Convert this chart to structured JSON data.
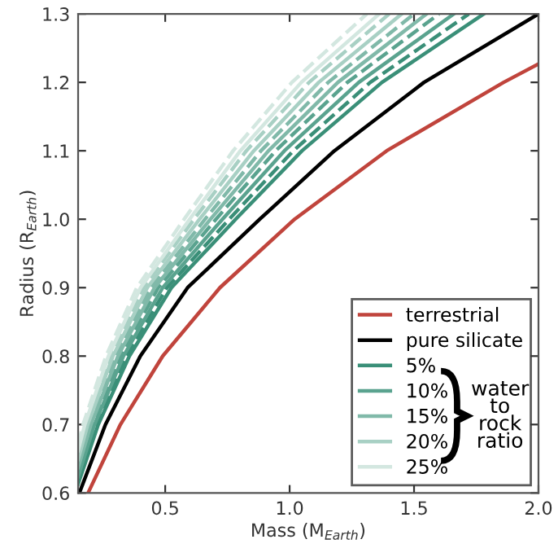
{
  "chart_data": {
    "type": "line",
    "xlabel": "Mass (M$_{Earth}$)",
    "ylabel": "Radius (R$_{Earth}$)",
    "xlim": [
      0.15,
      2.0
    ],
    "ylim": [
      0.6,
      1.3
    ],
    "xticks": [
      0.5,
      {
        "value": 1,
        "label": "1.0"
      },
      1.5,
      {
        "value": 2,
        "label": "2.0"
      }
    ],
    "yticks": [
      0.6,
      0.7,
      0.8,
      0.9,
      {
        "value": 1,
        "label": "1.0"
      },
      1.1,
      1.2,
      1.3
    ],
    "grid": false,
    "legend": "bottom right",
    "line_style": "solid",
    "annotations": [
      "water\nto\nrock\nratio"
    ],
    "series": [
      {
        "name": "terrestrial",
        "color": "#c0443c",
        "x": [
          0.19,
          0.32,
          0.49,
          0.72,
          1.02,
          1.39,
          1.86,
          2.0
        ],
        "values": [
          0.6,
          0.7,
          0.8,
          0.9,
          1.0,
          1.1,
          1.2,
          1.227
        ]
      },
      {
        "name": "pure silicate",
        "color": "#000000",
        "x": [
          0.155,
          0.26,
          0.4,
          0.59,
          0.88,
          1.18,
          1.54,
          2.0
        ],
        "values": [
          0.6,
          0.7,
          0.8,
          0.9,
          1.0,
          1.1,
          1.2,
          1.3
        ]
      },
      {
        "name": "5%",
        "color": "#3a8f78",
        "x": [
          0.15,
          0.231,
          0.356,
          0.525,
          0.783,
          1.05,
          1.371,
          1.78
        ],
        "values": [
          0.613,
          0.7,
          0.8,
          0.9,
          1.0,
          1.1,
          1.2,
          1.3
        ]
      },
      {
        "color": "#3a8f78",
        "line_style": "dashed",
        "x": [
          0.15,
          0.224,
          0.344,
          0.507,
          0.757,
          1.015,
          1.324,
          1.72
        ],
        "values": [
          0.618,
          0.7,
          0.8,
          0.9,
          1.0,
          1.1,
          1.2,
          1.3
        ]
      },
      {
        "name": "10%",
        "color": "#5aa38f",
        "x": [
          0.15,
          0.216,
          0.332,
          0.49,
          0.73,
          0.979,
          1.278,
          1.66
        ],
        "values": [
          0.624,
          0.7,
          0.8,
          0.9,
          1.0,
          1.1,
          1.2,
          1.3
        ]
      },
      {
        "color": "#5aa38f",
        "line_style": "dashed",
        "x": [
          0.15,
          0.208,
          0.32,
          0.472,
          0.704,
          0.944,
          1.232,
          1.6
        ],
        "values": [
          0.631,
          0.7,
          0.8,
          0.9,
          1.0,
          1.1,
          1.2,
          1.3
        ]
      },
      {
        "name": "15%",
        "color": "#80b9a9",
        "x": [
          0.15,
          0.2015,
          0.31,
          0.457,
          0.682,
          0.915,
          1.194,
          1.55
        ],
        "values": [
          0.637,
          0.7,
          0.8,
          0.9,
          1.0,
          1.1,
          1.2,
          1.3
        ]
      },
      {
        "color": "#80b9a9",
        "line_style": "dashed",
        "x": [
          0.15,
          0.195,
          0.3,
          0.443,
          0.66,
          0.885,
          1.155,
          1.5
        ],
        "values": [
          0.643,
          0.7,
          0.8,
          0.9,
          1.0,
          1.1,
          1.2,
          1.3
        ]
      },
      {
        "name": "20%",
        "color": "#a8d0c4",
        "x": [
          0.15,
          0.1885,
          0.29,
          0.428,
          0.638,
          0.856,
          1.117,
          1.45
        ],
        "values": [
          0.649,
          0.7,
          0.8,
          0.9,
          1.0,
          1.1,
          1.2,
          1.3
        ]
      },
      {
        "color": "#a8d0c4",
        "line_style": "dashed",
        "x": [
          0.15,
          0.182,
          0.28,
          0.413,
          0.616,
          0.826,
          1.078,
          1.4
        ],
        "values": [
          0.656,
          0.7,
          0.8,
          0.9,
          1.0,
          1.1,
          1.2,
          1.3
        ]
      },
      {
        "name": "25%",
        "color": "#d3e7e0",
        "x": [
          0.15,
          0.177,
          0.272,
          0.401,
          0.598,
          0.802,
          1.047,
          1.36
        ],
        "values": [
          0.662,
          0.7,
          0.8,
          0.9,
          1.0,
          1.1,
          1.2,
          1.3
        ]
      },
      {
        "color": "#d3e7e0",
        "line_style": "dashed",
        "x": [
          0.15,
          0.17,
          0.262,
          0.386,
          0.576,
          0.773,
          1.009,
          1.31
        ],
        "values": [
          0.671,
          0.7,
          0.8,
          0.9,
          1.0,
          1.1,
          1.2,
          1.3
        ]
      }
    ]
  }
}
